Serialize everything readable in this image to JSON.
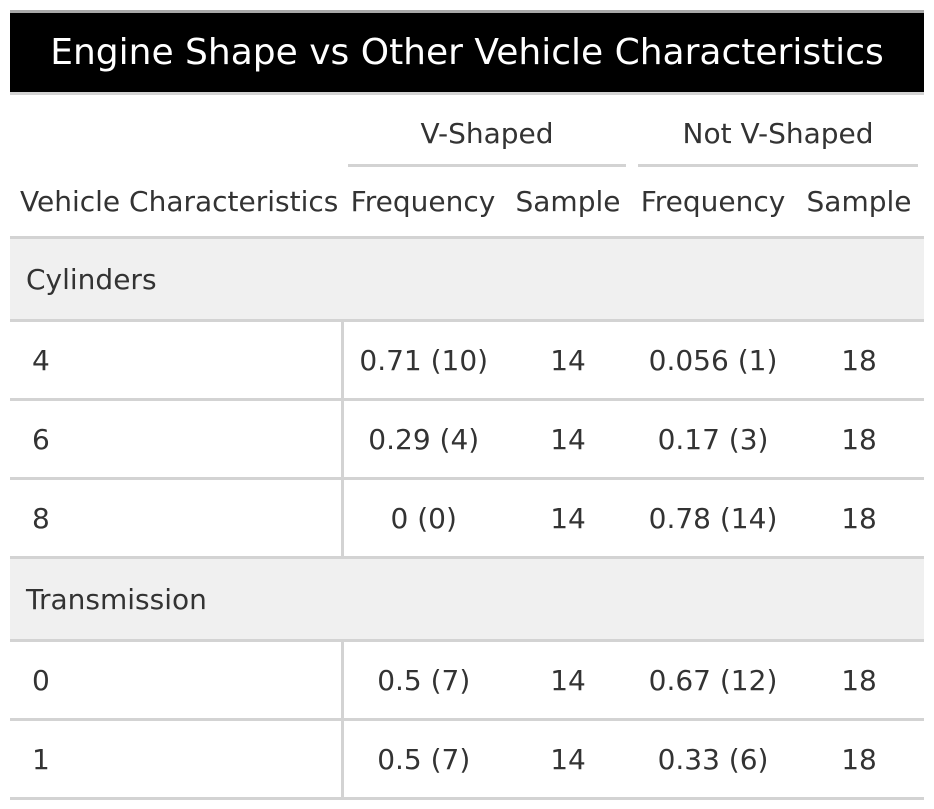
{
  "title": "Engine Shape vs Other Vehicle Characteristics",
  "spanners": {
    "v_shaped": "V-Shaped",
    "not_v_shaped": "Not V-Shaped"
  },
  "columns": {
    "stub": "Vehicle Characteristics",
    "v_frequency": "Frequency",
    "v_sample": "Sample",
    "nv_frequency": "Frequency",
    "nv_sample": "Sample"
  },
  "groups": [
    {
      "label": "Cylinders",
      "rows": [
        {
          "label": "4",
          "v_freq": "0.71 (10)",
          "v_sample": "14",
          "nv_freq": "0.056 (1)",
          "nv_sample": "18"
        },
        {
          "label": "6",
          "v_freq": "0.29 (4)",
          "v_sample": "14",
          "nv_freq": "0.17 (3)",
          "nv_sample": "18"
        },
        {
          "label": "8",
          "v_freq": "0 (0)",
          "v_sample": "14",
          "nv_freq": "0.78 (14)",
          "nv_sample": "18"
        }
      ]
    },
    {
      "label": "Transmission",
      "rows": [
        {
          "label": "0",
          "v_freq": "0.5 (7)",
          "v_sample": "14",
          "nv_freq": "0.67 (12)",
          "nv_sample": "18"
        },
        {
          "label": "1",
          "v_freq": "0.5 (7)",
          "v_sample": "14",
          "nv_freq": "0.33 (6)",
          "nv_sample": "18"
        }
      ]
    }
  ],
  "colors": {
    "title_bg": "#000000",
    "title_fg": "#ffffff",
    "group_bg": "#f0f0f0",
    "rule": "#d3d3d3"
  }
}
